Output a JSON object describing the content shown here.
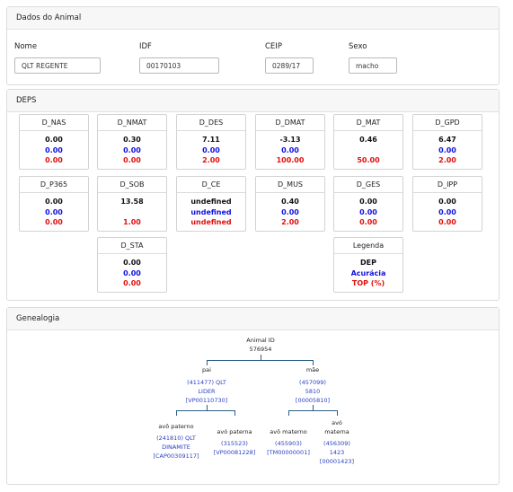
{
  "animal": {
    "title": "Dados do Animal",
    "fields": [
      {
        "label": "Nome",
        "value": "QLT REGENTE"
      },
      {
        "label": "IDF",
        "value": "00170103"
      },
      {
        "label": "CEIP",
        "value": "0289/17"
      },
      {
        "label": "Sexo",
        "value": "macho"
      }
    ]
  },
  "deps": {
    "title": "DEPS",
    "boxes": [
      {
        "name": "D_NAS",
        "dep": "0.00",
        "acc": "0.00",
        "top": "0.00"
      },
      {
        "name": "D_NMAT",
        "dep": "0.30",
        "acc": "0.00",
        "top": "0.00"
      },
      {
        "name": "D_DES",
        "dep": "7.11",
        "acc": "0.00",
        "top": "2.00"
      },
      {
        "name": "D_DMAT",
        "dep": "-3.13",
        "acc": "0.00",
        "top": "100.00"
      },
      {
        "name": "D_MAT",
        "dep": "0.46",
        "acc": "",
        "top": "50.00"
      },
      {
        "name": "D_GPD",
        "dep": "6.47",
        "acc": "0.00",
        "top": "2.00"
      },
      {
        "name": "D_P365",
        "dep": "0.00",
        "acc": "0.00",
        "top": "0.00"
      },
      {
        "name": "D_SOB",
        "dep": "13.58",
        "acc": "",
        "top": "1.00"
      },
      {
        "name": "D_CE",
        "dep": "undefined",
        "acc": "undefined",
        "top": "undefined"
      },
      {
        "name": "D_MUS",
        "dep": "0.40",
        "acc": "0.00",
        "top": "2.00"
      },
      {
        "name": "D_GES",
        "dep": "0.00",
        "acc": "0.00",
        "top": "0.00"
      },
      {
        "name": "D_IPP",
        "dep": "0.00",
        "acc": "0.00",
        "top": "0.00"
      },
      {
        "name": "D_STA",
        "dep": "0.00",
        "acc": "0.00",
        "top": "0.00"
      }
    ],
    "legend": {
      "title": "Legenda",
      "dep": "DEP",
      "acc": "Acurácia",
      "top": "TOP (%)"
    }
  },
  "genealogy": {
    "title": "Genealogia",
    "root": {
      "label": "Animal ID",
      "id": "576954"
    },
    "pai": {
      "label": "pai",
      "line1": "(411477) QLT",
      "line2": "LIDER",
      "line3": "[VP00110730]"
    },
    "mae": {
      "label": "mãe",
      "line1": "(457099)",
      "line2": "5810",
      "line3": "[00005810]"
    },
    "avo_paterno": {
      "label": "avô paterno",
      "line1": "(241810) QLT",
      "line2": "DINAMITE",
      "line3": "[CAP00309117]"
    },
    "avo_paterna": {
      "label": "avó paterna",
      "line1": "(315523)",
      "line2": "[VP00081228]"
    },
    "avo_materno": {
      "label": "avô materno",
      "line1": "(455903)",
      "line2": "[TM00000001]"
    },
    "avo_materna": {
      "label1": "avó",
      "label2": "materna",
      "line1": "(456309)",
      "line2": "1423",
      "line3": "[00001423]"
    }
  }
}
